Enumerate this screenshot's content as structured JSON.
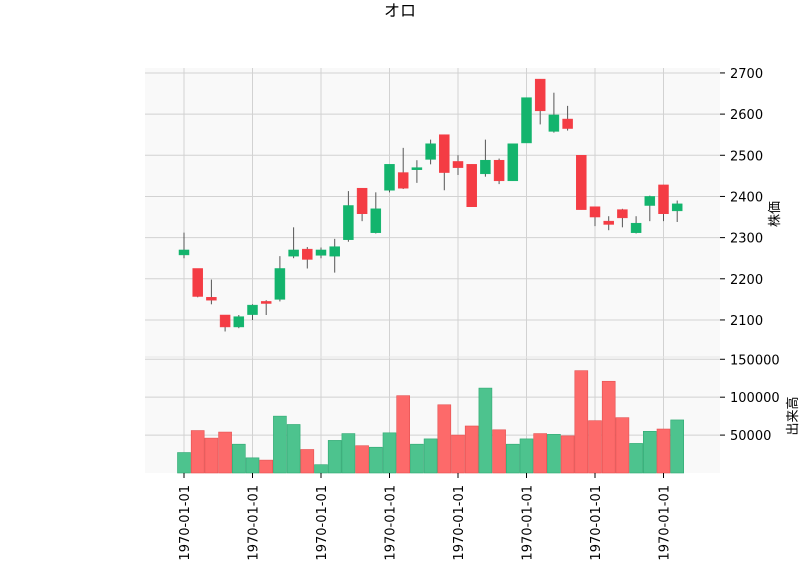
{
  "chart_data": {
    "type": "candlestick",
    "title": "オロ",
    "ylabel_price": "株価",
    "ylabel_volume": "出来高",
    "x_tick_labels": [
      "1970-01-01",
      "1970-01-01",
      "1970-01-01",
      "1970-01-01",
      "1970-01-01",
      "1970-01-01",
      "1970-01-01",
      "1970-01-01"
    ],
    "price_ticks": [
      2100,
      2200,
      2300,
      2400,
      2500,
      2600,
      2700
    ],
    "volume_ticks": [
      50000,
      100000,
      150000
    ],
    "price_ylim": [
      2010,
      2712
    ],
    "volume_ylim": [
      0,
      153000
    ],
    "grid": true,
    "colors": {
      "up": "#13b46d",
      "down": "#f43c44",
      "up_volume": "#4dc38e",
      "down_volume": "#fd6a6a",
      "grid": "#d2d2d2",
      "panel": "#f9f9f9"
    },
    "candles": [
      {
        "o": 2258,
        "h": 2312,
        "l": 2250,
        "c": 2270,
        "v": 27000
      },
      {
        "o": 2225,
        "h": 2225,
        "l": 2155,
        "c": 2157,
        "v": 56000
      },
      {
        "o": 2155,
        "h": 2198,
        "l": 2138,
        "c": 2148,
        "v": 46000
      },
      {
        "o": 2112,
        "h": 2112,
        "l": 2072,
        "c": 2083,
        "v": 54000
      },
      {
        "o": 2083,
        "h": 2112,
        "l": 2080,
        "c": 2108,
        "v": 38000
      },
      {
        "o": 2113,
        "h": 2138,
        "l": 2100,
        "c": 2136,
        "v": 20000
      },
      {
        "o": 2145,
        "h": 2148,
        "l": 2112,
        "c": 2140,
        "v": 17000
      },
      {
        "o": 2150,
        "h": 2255,
        "l": 2145,
        "c": 2225,
        "v": 75000
      },
      {
        "o": 2255,
        "h": 2325,
        "l": 2250,
        "c": 2270,
        "v": 64000
      },
      {
        "o": 2272,
        "h": 2277,
        "l": 2225,
        "c": 2247,
        "v": 31000
      },
      {
        "o": 2257,
        "h": 2276,
        "l": 2250,
        "c": 2270,
        "v": 11000
      },
      {
        "o": 2255,
        "h": 2297,
        "l": 2215,
        "c": 2278,
        "v": 43000
      },
      {
        "o": 2295,
        "h": 2413,
        "l": 2290,
        "c": 2378,
        "v": 52000
      },
      {
        "o": 2420,
        "h": 2420,
        "l": 2340,
        "c": 2358,
        "v": 36000
      },
      {
        "o": 2312,
        "h": 2410,
        "l": 2310,
        "c": 2370,
        "v": 34000
      },
      {
        "o": 2415,
        "h": 2478,
        "l": 2410,
        "c": 2478,
        "v": 53000
      },
      {
        "o": 2458,
        "h": 2518,
        "l": 2418,
        "c": 2420,
        "v": 102000
      },
      {
        "o": 2465,
        "h": 2488,
        "l": 2433,
        "c": 2470,
        "v": 38000
      },
      {
        "o": 2490,
        "h": 2538,
        "l": 2478,
        "c": 2528,
        "v": 45000
      },
      {
        "o": 2550,
        "h": 2550,
        "l": 2415,
        "c": 2458,
        "v": 90000
      },
      {
        "o": 2485,
        "h": 2500,
        "l": 2452,
        "c": 2470,
        "v": 50000
      },
      {
        "o": 2478,
        "h": 2478,
        "l": 2375,
        "c": 2375,
        "v": 62000
      },
      {
        "o": 2455,
        "h": 2538,
        "l": 2448,
        "c": 2488,
        "v": 112000
      },
      {
        "o": 2488,
        "h": 2492,
        "l": 2430,
        "c": 2438,
        "v": 57000
      },
      {
        "o": 2438,
        "h": 2528,
        "l": 2438,
        "c": 2528,
        "v": 38000
      },
      {
        "o": 2530,
        "h": 2640,
        "l": 2530,
        "c": 2640,
        "v": 45000
      },
      {
        "o": 2685,
        "h": 2685,
        "l": 2575,
        "c": 2608,
        "v": 52000
      },
      {
        "o": 2558,
        "h": 2652,
        "l": 2555,
        "c": 2598,
        "v": 51000
      },
      {
        "o": 2588,
        "h": 2620,
        "l": 2560,
        "c": 2565,
        "v": 49000
      },
      {
        "o": 2500,
        "h": 2500,
        "l": 2368,
        "c": 2368,
        "v": 135000
      },
      {
        "o": 2375,
        "h": 2375,
        "l": 2328,
        "c": 2350,
        "v": 69000
      },
      {
        "o": 2340,
        "h": 2352,
        "l": 2318,
        "c": 2332,
        "v": 121000
      },
      {
        "o": 2368,
        "h": 2370,
        "l": 2325,
        "c": 2348,
        "v": 73000
      },
      {
        "o": 2312,
        "h": 2352,
        "l": 2310,
        "c": 2335,
        "v": 39000
      },
      {
        "o": 2378,
        "h": 2402,
        "l": 2340,
        "c": 2400,
        "v": 55000
      },
      {
        "o": 2428,
        "h": 2428,
        "l": 2340,
        "c": 2358,
        "v": 58000
      },
      {
        "o": 2365,
        "h": 2390,
        "l": 2338,
        "c": 2382,
        "v": 70000
      }
    ]
  }
}
